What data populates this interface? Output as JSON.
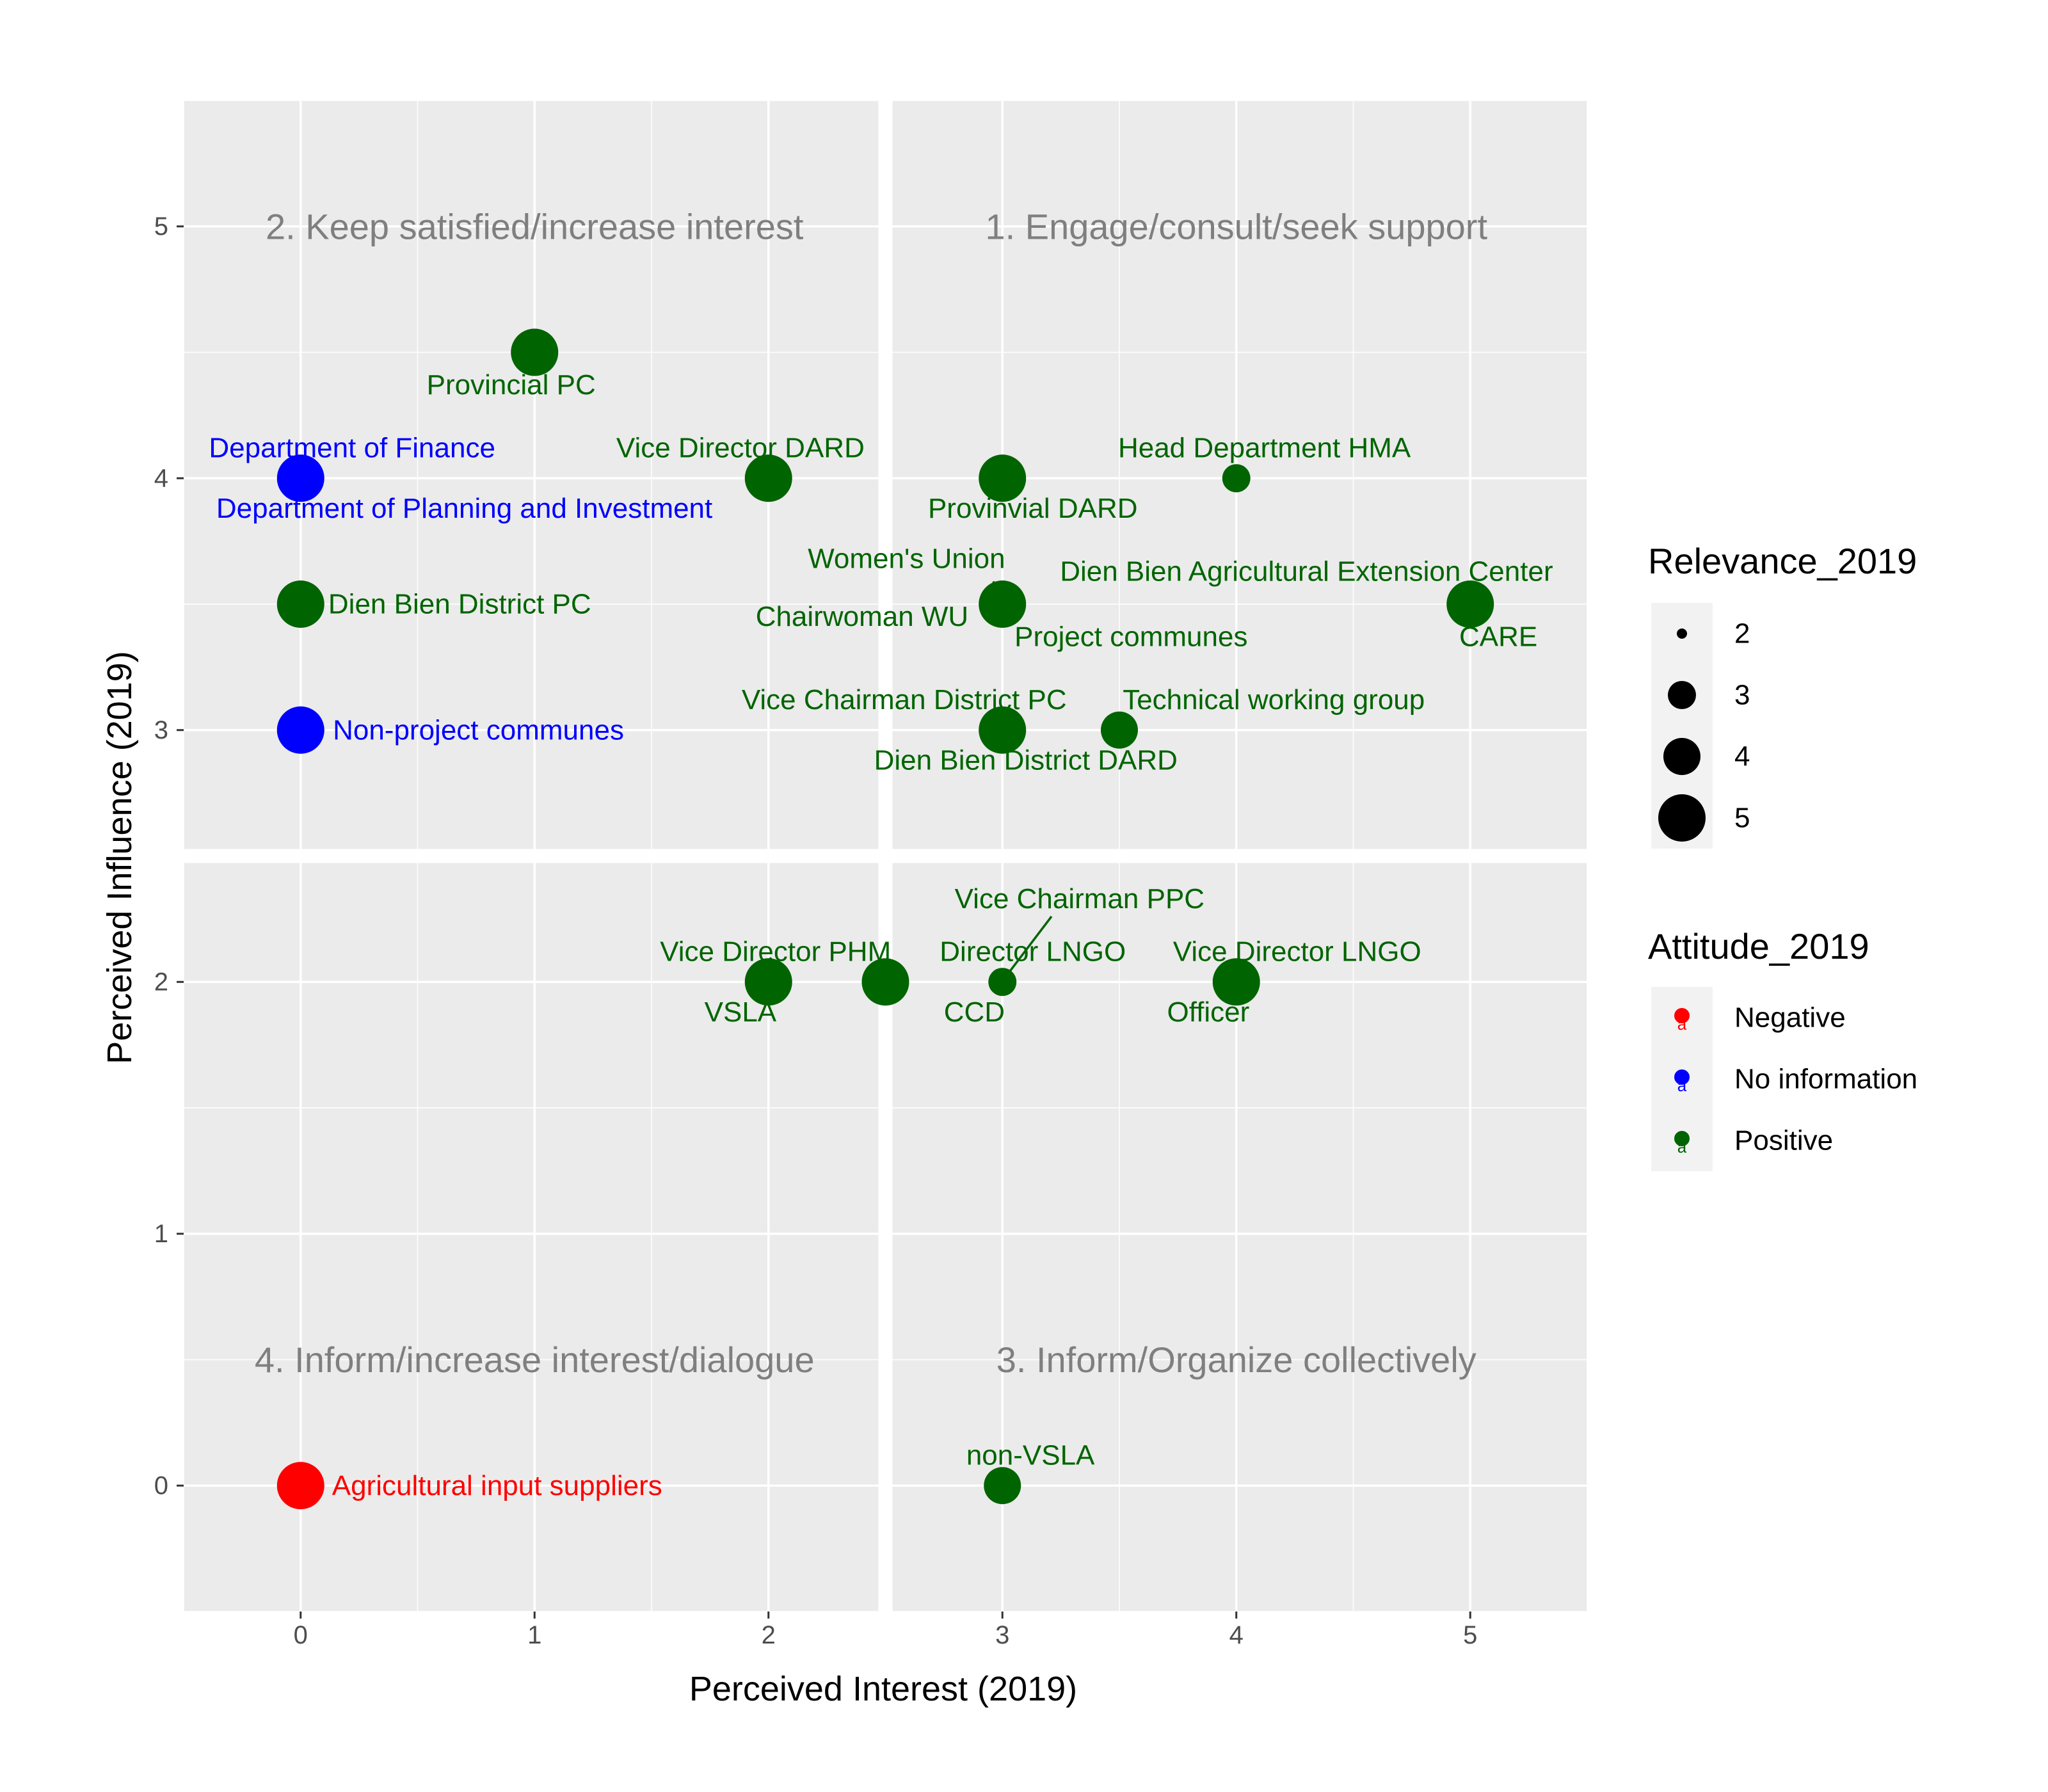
{
  "chart_data": {
    "type": "scatter",
    "xlabel": "Perceived Interest (2019)",
    "ylabel": "Perceived Influence (2019)",
    "xlim": [
      -0.5,
      5.5
    ],
    "ylim": [
      -0.5,
      5.5
    ],
    "x_ticks": [
      0,
      1,
      2,
      3,
      4,
      5
    ],
    "y_ticks": [
      0,
      1,
      2,
      3,
      4,
      5
    ],
    "grid": true,
    "quadrant_divider": {
      "x": 2.5,
      "y": 2.5
    },
    "quadrant_labels": [
      {
        "text": "2. Keep satisfied/increase interest",
        "x": 1,
        "y": 5
      },
      {
        "text": "1. Engage/consult/seek support",
        "x": 4,
        "y": 5
      },
      {
        "text": "4. Inform/increase interest/dialogue",
        "x": 1,
        "y": 0.5
      },
      {
        "text": "3. Inform/Organize collectively",
        "x": 4,
        "y": 0.5
      }
    ],
    "attitude_colors": {
      "Negative": "#ff0000",
      "No information": "#0000ff",
      "Positive": "#006400"
    },
    "points": [
      {
        "x": 1,
        "y": 4.5,
        "relevance": 5,
        "attitude": "Positive"
      },
      {
        "x": 0,
        "y": 4,
        "relevance": 5,
        "attitude": "No information"
      },
      {
        "x": 2,
        "y": 4,
        "relevance": 5,
        "attitude": "Positive"
      },
      {
        "x": 3,
        "y": 4,
        "relevance": 5,
        "attitude": "Positive"
      },
      {
        "x": 4,
        "y": 4,
        "relevance": 3,
        "attitude": "Positive"
      },
      {
        "x": 0,
        "y": 3.5,
        "relevance": 5,
        "attitude": "Positive"
      },
      {
        "x": 3,
        "y": 3.5,
        "relevance": 5,
        "attitude": "Positive"
      },
      {
        "x": 5,
        "y": 3.5,
        "relevance": 5,
        "attitude": "Positive"
      },
      {
        "x": 0,
        "y": 3,
        "relevance": 5,
        "attitude": "No information"
      },
      {
        "x": 3,
        "y": 3,
        "relevance": 5,
        "attitude": "Positive"
      },
      {
        "x": 3.5,
        "y": 3,
        "relevance": 4,
        "attitude": "Positive"
      },
      {
        "x": 2,
        "y": 2,
        "relevance": 5,
        "attitude": "Positive"
      },
      {
        "x": 2.5,
        "y": 2,
        "relevance": 5,
        "attitude": "Positive"
      },
      {
        "x": 3,
        "y": 2,
        "relevance": 3,
        "attitude": "Positive"
      },
      {
        "x": 4,
        "y": 2,
        "relevance": 5,
        "attitude": "Positive"
      },
      {
        "x": 0,
        "y": 0,
        "relevance": 5,
        "attitude": "Negative"
      },
      {
        "x": 3,
        "y": 0,
        "relevance": 4,
        "attitude": "Positive"
      }
    ],
    "labels": [
      {
        "text": "Provincial PC",
        "x": 0.9,
        "y": 4.37,
        "attitude": "Positive"
      },
      {
        "text": "Department of Finance",
        "x": 0.22,
        "y": 4.12,
        "attitude": "No information"
      },
      {
        "text": "Department of Planning and Investment",
        "x": 0.7,
        "y": 3.88,
        "attitude": "No information"
      },
      {
        "text": "Vice Director DARD",
        "x": 1.88,
        "y": 4.12,
        "attitude": "Positive"
      },
      {
        "text": "Provinvial DARD",
        "x": 3.13,
        "y": 3.88,
        "attitude": "Positive"
      },
      {
        "text": "Head Department HMA",
        "x": 4.12,
        "y": 4.12,
        "attitude": "Positive"
      },
      {
        "text": "Women's Union",
        "x": 2.59,
        "y": 3.68,
        "attitude": "Positive"
      },
      {
        "text": "Dien Bien Agricultural Extension Center",
        "x": 4.3,
        "y": 3.63,
        "attitude": "Positive"
      },
      {
        "text": "Dien Bien District PC",
        "x": 0.68,
        "y": 3.5,
        "attitude": "Positive"
      },
      {
        "text": "Chairwoman WU",
        "x": 2.4,
        "y": 3.45,
        "attitude": "Positive"
      },
      {
        "text": "Project communes",
        "x": 3.55,
        "y": 3.37,
        "attitude": "Positive"
      },
      {
        "text": "CARE",
        "x": 5.12,
        "y": 3.37,
        "attitude": "Positive"
      },
      {
        "text": "Vice Chairman District PC",
        "x": 2.58,
        "y": 3.12,
        "attitude": "Positive"
      },
      {
        "text": "Technical working group",
        "x": 4.16,
        "y": 3.12,
        "attitude": "Positive"
      },
      {
        "text": "Non-project communes",
        "x": 0.76,
        "y": 3,
        "attitude": "No information"
      },
      {
        "text": "Dien Bien District DARD",
        "x": 3.1,
        "y": 2.88,
        "attitude": "Positive"
      },
      {
        "text": "Vice Chairman PPC",
        "x": 3.33,
        "y": 2.33,
        "attitude": "Positive"
      },
      {
        "text": "Vice Director PHM",
        "x": 2.03,
        "y": 2.12,
        "attitude": "Positive"
      },
      {
        "text": "Director LNGO",
        "x": 3.13,
        "y": 2.12,
        "attitude": "Positive"
      },
      {
        "text": "Vice Director LNGO",
        "x": 4.26,
        "y": 2.12,
        "attitude": "Positive"
      },
      {
        "text": "VSLA",
        "x": 1.88,
        "y": 1.88,
        "attitude": "Positive"
      },
      {
        "text": "CCD",
        "x": 2.88,
        "y": 1.88,
        "attitude": "Positive"
      },
      {
        "text": "Officer",
        "x": 3.88,
        "y": 1.88,
        "attitude": "Positive"
      },
      {
        "text": "non-VSLA",
        "x": 3.12,
        "y": 0.12,
        "attitude": "Positive"
      },
      {
        "text": "Agricultural input suppliers",
        "x": 0.84,
        "y": 0,
        "attitude": "Negative"
      }
    ],
    "leader_lines": [
      {
        "x1": 2.96,
        "y1": 3.59,
        "x2": 3.0,
        "y2": 3.54
      },
      {
        "x1": 3.21,
        "y1": 2.26,
        "x2": 3.03,
        "y2": 2.04
      }
    ],
    "legend_relevance": {
      "title": "Relevance_2019",
      "items": [
        2,
        3,
        4,
        5
      ]
    },
    "legend_attitude": {
      "title": "Attitude_2019",
      "items": [
        "Negative",
        "No information",
        "Positive"
      ],
      "key_glyph": "a"
    },
    "legend_placement": "right"
  }
}
